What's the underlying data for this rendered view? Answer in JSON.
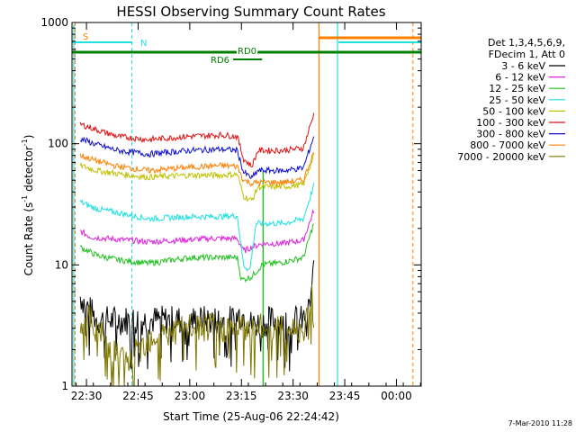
{
  "chart_data": {
    "type": "line",
    "title": "HESSI Observing Summary Count Rates",
    "xlabel": "Start Time (25-Aug-06 22:24:42)",
    "ylabel_main": "Count Rate (s",
    "ylabel_sup1": "-1",
    "ylabel_mid": " detector",
    "ylabel_sup2": "-1",
    "ylabel_end": ")",
    "yscale": "log",
    "ylim": [
      1,
      1000
    ],
    "xlim_min": [
      22.43,
      24.12
    ],
    "x_ticks": [
      {
        "label": "22:30",
        "t": 22.5
      },
      {
        "label": "22:45",
        "t": 22.75
      },
      {
        "label": "23:00",
        "t": 23.0
      },
      {
        "label": "23:15",
        "t": 23.25
      },
      {
        "label": "23:30",
        "t": 23.5
      },
      {
        "label": "23:45",
        "t": 23.75
      },
      {
        "label": "00:00",
        "t": 24.0
      }
    ],
    "y_ticks": [
      {
        "label": "1",
        "v": 1
      },
      {
        "label": "10",
        "v": 10
      },
      {
        "label": "100",
        "v": 100
      },
      {
        "label": "1000",
        "v": 1000
      }
    ],
    "legend_header": [
      "Det 1,3,4,5,6,9,",
      "FDecim 1, Att 0"
    ],
    "legend_position": "right",
    "series": [
      {
        "name": "3 - 6 keV",
        "color": "#000000",
        "points": [
          [
            22.47,
            5.5
          ],
          [
            22.55,
            3.5
          ],
          [
            22.7,
            3.5
          ],
          [
            22.8,
            3.5
          ],
          [
            23.0,
            3.5
          ],
          [
            23.2,
            3.5
          ],
          [
            23.25,
            4
          ],
          [
            23.3,
            3.2
          ],
          [
            23.4,
            3.5
          ],
          [
            23.55,
            3.5
          ],
          [
            23.58,
            4.5
          ],
          [
            23.6,
            9
          ]
        ]
      },
      {
        "name": "6 - 12 keV",
        "color": "#e020e0",
        "points": [
          [
            22.47,
            19
          ],
          [
            22.52,
            17
          ],
          [
            22.6,
            16.5
          ],
          [
            22.8,
            15.5
          ],
          [
            22.95,
            16
          ],
          [
            23.1,
            16.5
          ],
          [
            23.23,
            16.5
          ],
          [
            23.26,
            13
          ],
          [
            23.3,
            14
          ],
          [
            23.35,
            15
          ],
          [
            23.45,
            15
          ],
          [
            23.55,
            16
          ],
          [
            23.6,
            28
          ]
        ]
      },
      {
        "name": "12 - 25 keV",
        "color": "#20c020",
        "points": [
          [
            22.47,
            14
          ],
          [
            22.55,
            12
          ],
          [
            22.65,
            11
          ],
          [
            22.8,
            10.3
          ],
          [
            23.0,
            11.5
          ],
          [
            23.15,
            11.5
          ],
          [
            23.23,
            11.5
          ],
          [
            23.25,
            7.5
          ],
          [
            23.3,
            8
          ],
          [
            23.35,
            10
          ],
          [
            23.45,
            10.5
          ],
          [
            23.55,
            11.5
          ],
          [
            23.6,
            22
          ]
        ]
      },
      {
        "name": "25 - 50 keV",
        "color": "#20e0e0",
        "points": [
          [
            22.47,
            33
          ],
          [
            22.55,
            29
          ],
          [
            22.7,
            26
          ],
          [
            22.8,
            24
          ],
          [
            23.0,
            25
          ],
          [
            23.15,
            25
          ],
          [
            23.23,
            25.5
          ],
          [
            23.26,
            10
          ],
          [
            23.29,
            9
          ],
          [
            23.32,
            22
          ],
          [
            23.45,
            22
          ],
          [
            23.55,
            24
          ],
          [
            23.6,
            45
          ]
        ]
      },
      {
        "name": "50 - 100 keV",
        "color": "#c0c000",
        "points": [
          [
            22.47,
            66
          ],
          [
            22.55,
            60
          ],
          [
            22.7,
            55
          ],
          [
            22.8,
            53
          ],
          [
            23.0,
            55
          ],
          [
            23.15,
            55
          ],
          [
            23.23,
            56
          ],
          [
            23.26,
            37
          ],
          [
            23.3,
            34
          ],
          [
            23.33,
            44
          ],
          [
            23.45,
            44
          ],
          [
            23.55,
            46
          ],
          [
            23.6,
            80
          ]
        ]
      },
      {
        "name": "100 - 300 keV",
        "color": "#e01010",
        "points": [
          [
            22.47,
            145
          ],
          [
            22.55,
            130
          ],
          [
            22.65,
            115
          ],
          [
            22.8,
            108
          ],
          [
            23.0,
            115
          ],
          [
            23.15,
            118
          ],
          [
            23.23,
            115
          ],
          [
            23.26,
            75
          ],
          [
            23.3,
            65
          ],
          [
            23.33,
            88
          ],
          [
            23.45,
            88
          ],
          [
            23.55,
            92
          ],
          [
            23.6,
            175
          ]
        ]
      },
      {
        "name": "300 - 800 keV",
        "color": "#1010d0",
        "points": [
          [
            22.47,
            110
          ],
          [
            22.55,
            98
          ],
          [
            22.65,
            88
          ],
          [
            22.8,
            82
          ],
          [
            23.0,
            88
          ],
          [
            23.15,
            90
          ],
          [
            23.23,
            88
          ],
          [
            23.26,
            58
          ],
          [
            23.3,
            52
          ],
          [
            23.33,
            60
          ],
          [
            23.45,
            60
          ],
          [
            23.55,
            63
          ],
          [
            23.6,
            115
          ]
        ]
      },
      {
        "name": "800 - 7000 keV",
        "color": "#ff8000",
        "points": [
          [
            22.47,
            80
          ],
          [
            22.55,
            72
          ],
          [
            22.65,
            65
          ],
          [
            22.8,
            60
          ],
          [
            23.0,
            64
          ],
          [
            23.15,
            66
          ],
          [
            23.23,
            65
          ],
          [
            23.26,
            50
          ],
          [
            23.3,
            47
          ],
          [
            23.33,
            48
          ],
          [
            23.45,
            48
          ],
          [
            23.55,
            50
          ],
          [
            23.6,
            85
          ]
        ]
      },
      {
        "name": "7000 - 20000 keV",
        "color": "#807800",
        "points": [
          [
            22.47,
            4.5
          ],
          [
            22.55,
            3.0
          ],
          [
            22.6,
            2.2
          ],
          [
            22.7,
            1.5
          ],
          [
            22.8,
            2.5
          ],
          [
            23.0,
            3.0
          ],
          [
            23.2,
            3.0
          ],
          [
            23.25,
            3.0
          ],
          [
            23.3,
            3.0
          ],
          [
            23.4,
            3.0
          ],
          [
            23.55,
            3.0
          ],
          [
            23.58,
            4.5
          ],
          [
            23.6,
            8
          ]
        ]
      }
    ],
    "annotations": {
      "s_label": "S",
      "n_label": "N",
      "rd0_label": "RD0",
      "rd6_label": "RD6"
    },
    "footer_date": "7-Mar-2010 11:28"
  }
}
